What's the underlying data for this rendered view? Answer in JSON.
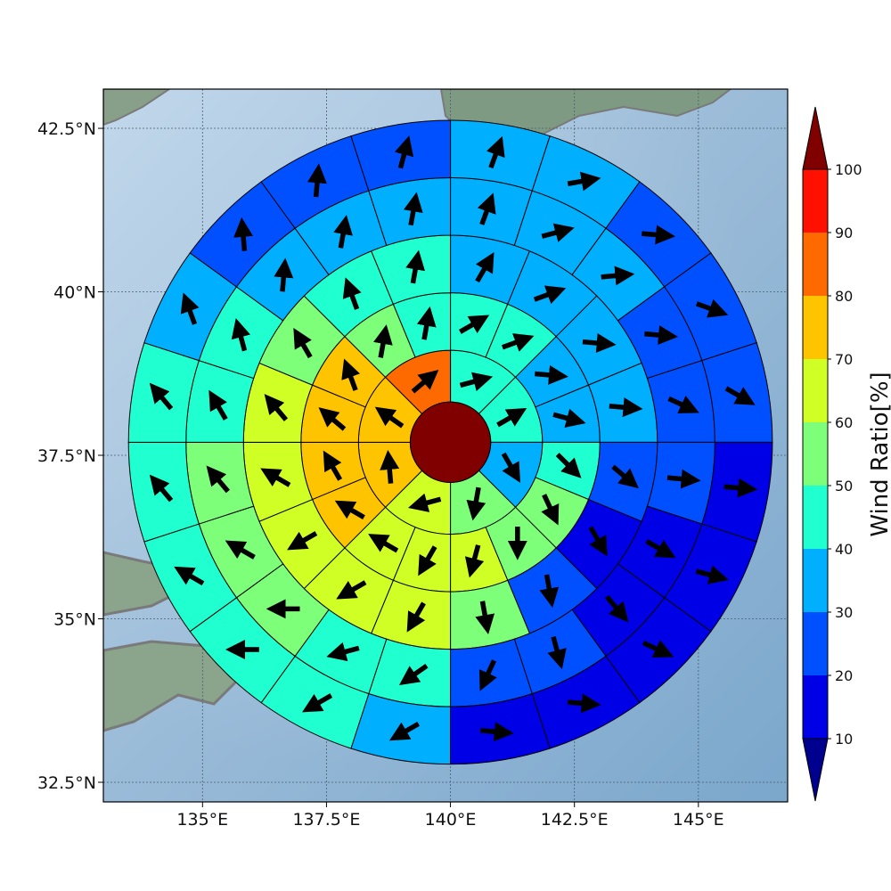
{
  "chart_data": {
    "type": "polar-sector-map",
    "ylabel": "",
    "xlabel": "",
    "colorbar": {
      "label": "Wind Ratio[%]",
      "ticks": [
        "10",
        "20",
        "30",
        "40",
        "50",
        "60",
        "70",
        "80",
        "90",
        "100"
      ],
      "bins": [
        {
          "min": 0,
          "max": 10,
          "color": "#00008f"
        },
        {
          "min": 10,
          "max": 20,
          "color": "#0000e6"
        },
        {
          "min": 20,
          "max": 30,
          "color": "#0050ff"
        },
        {
          "min": 30,
          "max": 40,
          "color": "#00b0ff"
        },
        {
          "min": 40,
          "max": 50,
          "color": "#20ffd0"
        },
        {
          "min": 50,
          "max": 60,
          "color": "#7dff7a"
        },
        {
          "min": 60,
          "max": 70,
          "color": "#d0ff26"
        },
        {
          "min": 70,
          "max": 80,
          "color": "#ffc400"
        },
        {
          "min": 80,
          "max": 90,
          "color": "#ff6a00"
        },
        {
          "min": 90,
          "max": 100,
          "color": "#ff1000"
        },
        {
          "min": 100,
          "max": 110,
          "color": "#800000"
        }
      ]
    },
    "axes": {
      "x_ticks": [
        {
          "value": 135.0,
          "label": "135°E"
        },
        {
          "value": 137.5,
          "label": "137.5°E"
        },
        {
          "value": 140.0,
          "label": "140°E"
        },
        {
          "value": 142.5,
          "label": "142.5°E"
        },
        {
          "value": 145.0,
          "label": "145°E"
        }
      ],
      "y_ticks": [
        {
          "value": 32.5,
          "label": "32.5°N"
        },
        {
          "value": 35.0,
          "label": "35°N"
        },
        {
          "value": 37.5,
          "label": "37.5°N"
        },
        {
          "value": 40.0,
          "label": "40°N"
        },
        {
          "value": 42.5,
          "label": "42.5°N"
        }
      ],
      "xlim": [
        133.0,
        146.8
      ],
      "ylim": [
        32.2,
        43.1
      ],
      "grid": true
    },
    "center": {
      "lon": 140.0,
      "lat": 37.7,
      "value": 100
    },
    "ring_radii_deg": [
      0.7,
      1.6,
      2.6,
      3.6,
      4.6,
      5.6
    ],
    "rings": [
      {
        "ring": 1,
        "sectors": 8,
        "values": [
          45,
          40,
          35,
          55,
          65,
          75,
          70,
          80
        ],
        "arrow_dirs_deg": [
          75,
          60,
          150,
          190,
          255,
          355,
          305,
          50
        ]
      },
      {
        "ring": 2,
        "sectors": 16,
        "values": [
          45,
          40,
          35,
          35,
          45,
          50,
          55,
          60,
          65,
          65,
          75,
          75,
          70,
          70,
          55,
          45
        ],
        "arrow_dirs_deg": [
          60,
          70,
          95,
          105,
          135,
          155,
          180,
          195,
          210,
          300,
          300,
          330,
          310,
          340,
          10,
          10
        ]
      },
      {
        "ring": 3,
        "sectors": 16,
        "values": [
          35,
          35,
          35,
          35,
          25,
          15,
          25,
          55,
          60,
          65,
          65,
          65,
          60,
          55,
          45,
          40
        ],
        "arrow_dirs_deg": [
          30,
          70,
          95,
          95,
          130,
          150,
          170,
          170,
          210,
          240,
          240,
          300,
          320,
          330,
          340,
          10
        ]
      },
      {
        "ring": 4,
        "sectors": 20,
        "values": [
          35,
          35,
          35,
          25,
          25,
          25,
          15,
          15,
          25,
          25,
          40,
          45,
          50,
          55,
          55,
          45,
          45,
          35,
          35,
          35
        ],
        "arrow_dirs_deg": [
          20,
          75,
          85,
          95,
          115,
          95,
          120,
          140,
          165,
          205,
          235,
          255,
          270,
          300,
          320,
          330,
          345,
          5,
          10,
          10
        ]
      },
      {
        "ring": 5,
        "sectors": 20,
        "values": [
          35,
          35,
          25,
          25,
          25,
          15,
          15,
          15,
          15,
          15,
          35,
          45,
          45,
          45,
          45,
          45,
          35,
          25,
          25,
          25
        ],
        "arrow_dirs_deg": [
          20,
          80,
          95,
          110,
          120,
          95,
          105,
          115,
          95,
          95,
          240,
          240,
          270,
          300,
          320,
          320,
          340,
          355,
          5,
          15
        ]
      },
      {
        "ring": 6,
        "sectors": 24,
        "values": [
          15,
          25,
          35,
          25,
          15,
          15,
          15,
          15,
          15,
          15,
          15,
          15,
          15,
          25,
          35,
          45,
          45,
          45,
          45,
          45,
          35,
          25,
          15,
          35
        ],
        "arrow_dirs_deg": [
          80,
          80,
          95,
          110,
          110,
          120,
          125,
          150,
          140,
          100,
          95,
          80,
          80,
          240,
          250,
          265,
          280,
          300,
          320,
          330,
          345,
          355,
          10,
          25
        ]
      }
    ]
  }
}
